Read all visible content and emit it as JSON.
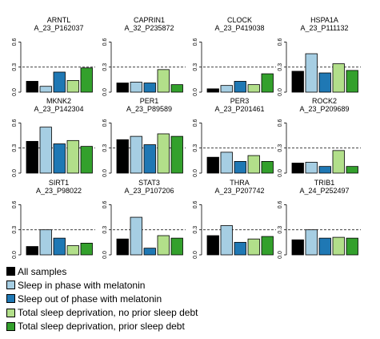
{
  "chart_data": {
    "type": "bar",
    "layout": "small-multiples-grid",
    "ylim": [
      0,
      0.7
    ],
    "yticks": [
      "0.0",
      "0.3",
      "0.6"
    ],
    "reference_line": 0.3,
    "reference_line_style": "dashed",
    "series": [
      {
        "name": "All samples",
        "color": "#000000"
      },
      {
        "name": "Sleep in phase with melatonin",
        "color": "#a6cee3"
      },
      {
        "name": "Sleep out of phase with melatonin",
        "color": "#1f78b4"
      },
      {
        "name": "Total sleep deprivation, no prior sleep debt",
        "color": "#b2df8a"
      },
      {
        "name": "Total sleep deprivation, prior sleep debt",
        "color": "#33a02c"
      }
    ],
    "panels": [
      {
        "gene": "ARNTL",
        "probe": "A_23_P162037",
        "values": [
          0.13,
          0.07,
          0.24,
          0.14,
          0.29
        ]
      },
      {
        "gene": "CAPRIN1",
        "probe": "A_32_P235872",
        "values": [
          0.11,
          0.12,
          0.11,
          0.27,
          0.09
        ]
      },
      {
        "gene": "CLOCK",
        "probe": "A_23_P419038",
        "values": [
          0.04,
          0.08,
          0.13,
          0.09,
          0.22
        ]
      },
      {
        "gene": "HSPA1A",
        "probe": "A_23_P111132",
        "values": [
          0.25,
          0.46,
          0.23,
          0.34,
          0.26
        ]
      },
      {
        "gene": "MKNK2",
        "probe": "A_23_P142304",
        "values": [
          0.38,
          0.55,
          0.35,
          0.39,
          0.32
        ]
      },
      {
        "gene": "PER1",
        "probe": "A_23_P89589",
        "values": [
          0.4,
          0.44,
          0.34,
          0.47,
          0.44
        ]
      },
      {
        "gene": "PER3",
        "probe": "A_23_P201461",
        "values": [
          0.19,
          0.25,
          0.14,
          0.21,
          0.14
        ]
      },
      {
        "gene": "ROCK2",
        "probe": "A_23_P209689",
        "values": [
          0.12,
          0.13,
          0.08,
          0.27,
          0.08
        ]
      },
      {
        "gene": "SIRT1",
        "probe": "A_23_P98022",
        "values": [
          0.1,
          0.3,
          0.2,
          0.11,
          0.14
        ]
      },
      {
        "gene": "STAT3",
        "probe": "A_23_P107206",
        "values": [
          0.19,
          0.45,
          0.08,
          0.23,
          0.2
        ]
      },
      {
        "gene": "THRA",
        "probe": "A_23_P207742",
        "values": [
          0.23,
          0.35,
          0.15,
          0.19,
          0.22
        ]
      },
      {
        "gene": "TRIB1",
        "probe": "A_24_P252497",
        "values": [
          0.18,
          0.3,
          0.2,
          0.21,
          0.2
        ]
      }
    ]
  }
}
